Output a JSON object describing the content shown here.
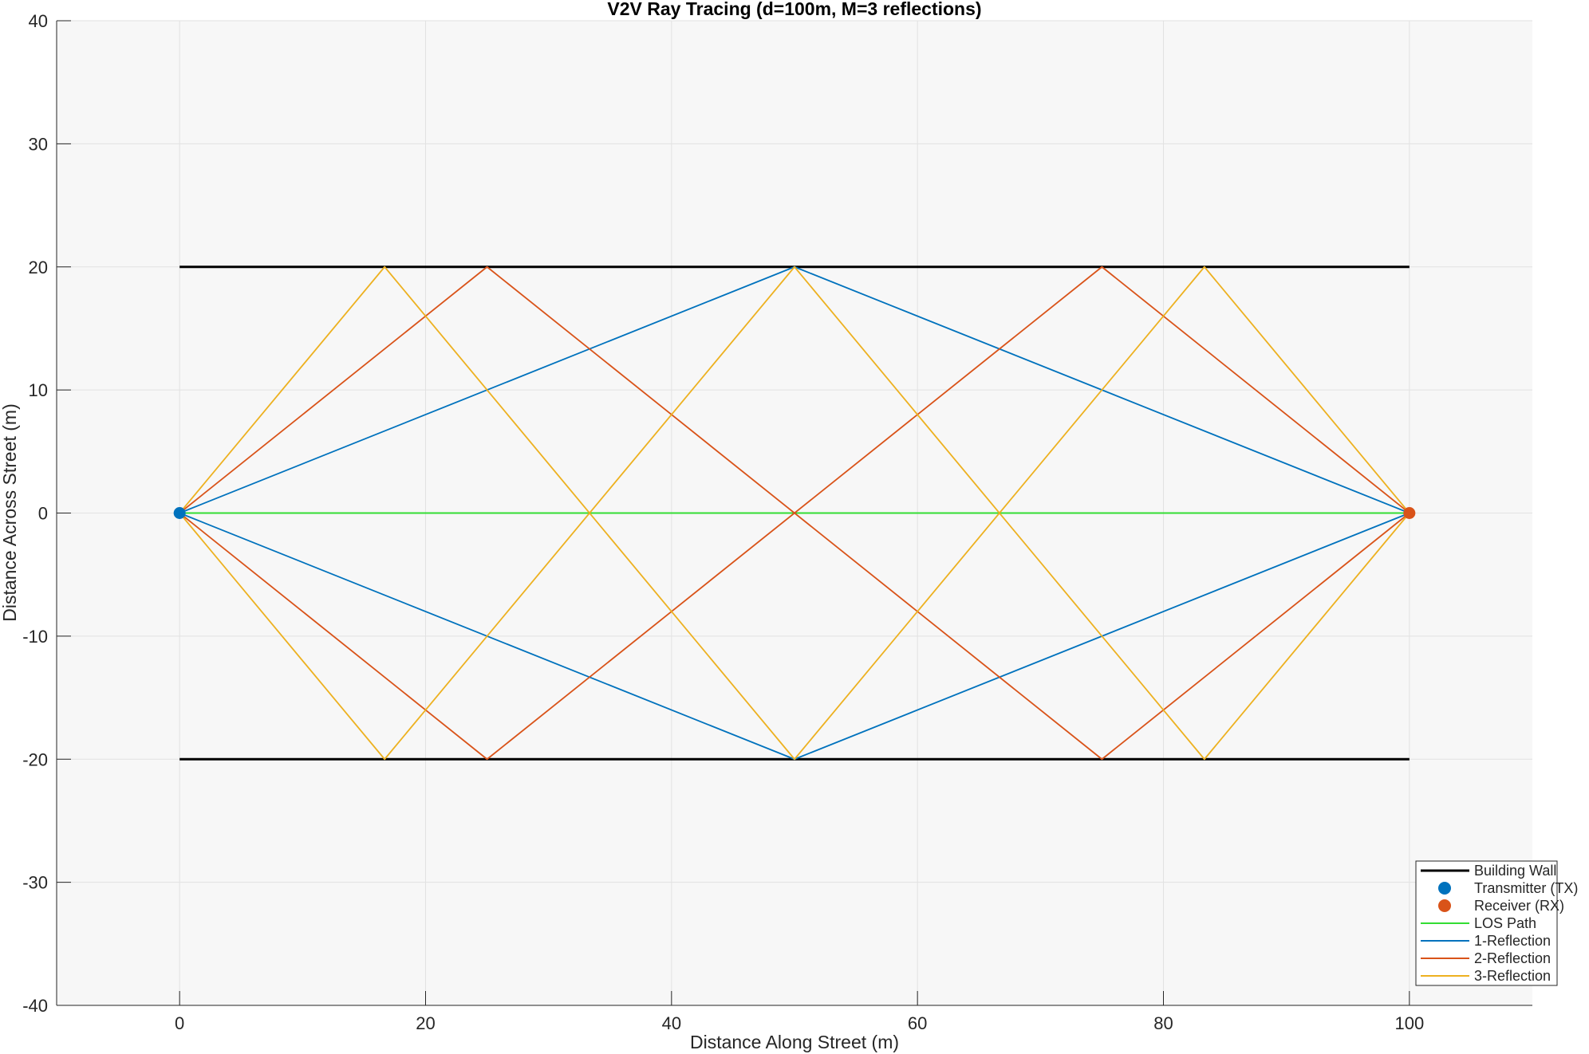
{
  "chart_data": {
    "type": "line",
    "title": "V2V Ray Tracing (d=100m, M=3 reflections)",
    "xlabel": "Distance Along Street (m)",
    "ylabel": "Distance Across Street (m)",
    "xlim": [
      -10,
      110
    ],
    "ylim": [
      -40,
      40
    ],
    "xticks": [
      0,
      20,
      40,
      60,
      80,
      100
    ],
    "yticks": [
      -40,
      -30,
      -20,
      -10,
      0,
      10,
      20,
      30,
      40
    ],
    "xtick_labels": [
      "0",
      "20",
      "40",
      "60",
      "80",
      "100"
    ],
    "ytick_labels": [
      "-40",
      "-30",
      "-20",
      "-10",
      "0",
      "10",
      "20",
      "30",
      "40"
    ],
    "grid": true,
    "legend_location": "bottom-right",
    "colors": {
      "plot_bg": "#f7f7f7",
      "grid": "#e2e2e2",
      "wall": "#000000",
      "tx": "#0072bd",
      "rx": "#d95319",
      "los": "#33dd33",
      "r1": "#0072bd",
      "r2": "#d95319",
      "r3": "#edb120"
    },
    "walls": {
      "name": "Building Wall",
      "lines": [
        {
          "x": [
            0,
            100
          ],
          "y": [
            20,
            20
          ]
        },
        {
          "x": [
            0,
            100
          ],
          "y": [
            -20,
            -20
          ]
        }
      ]
    },
    "transmitter": {
      "name": "Transmitter (TX)",
      "x": 0,
      "y": 0
    },
    "receiver": {
      "name": "Receiver (RX)",
      "x": 100,
      "y": 0
    },
    "series": [
      {
        "name": "LOS Path",
        "color_key": "los",
        "paths": [
          {
            "x": [
              0,
              100
            ],
            "y": [
              0,
              0
            ]
          }
        ]
      },
      {
        "name": "1-Reflection",
        "color_key": "r1",
        "paths": [
          {
            "x": [
              0,
              50,
              100
            ],
            "y": [
              0,
              20,
              0
            ]
          },
          {
            "x": [
              0,
              50,
              100
            ],
            "y": [
              0,
              -20,
              0
            ]
          }
        ]
      },
      {
        "name": "2-Reflection",
        "color_key": "r2",
        "paths": [
          {
            "x": [
              0,
              25,
              75,
              100
            ],
            "y": [
              0,
              20,
              -20,
              0
            ]
          },
          {
            "x": [
              0,
              25,
              75,
              100
            ],
            "y": [
              0,
              -20,
              20,
              0
            ]
          }
        ]
      },
      {
        "name": "3-Reflection",
        "color_key": "r3",
        "paths": [
          {
            "x": [
              0,
              16.67,
              50,
              83.33,
              100
            ],
            "y": [
              0,
              20,
              -20,
              20,
              0
            ]
          },
          {
            "x": [
              0,
              16.67,
              50,
              83.33,
              100
            ],
            "y": [
              0,
              -20,
              20,
              -20,
              0
            ]
          }
        ]
      }
    ]
  }
}
